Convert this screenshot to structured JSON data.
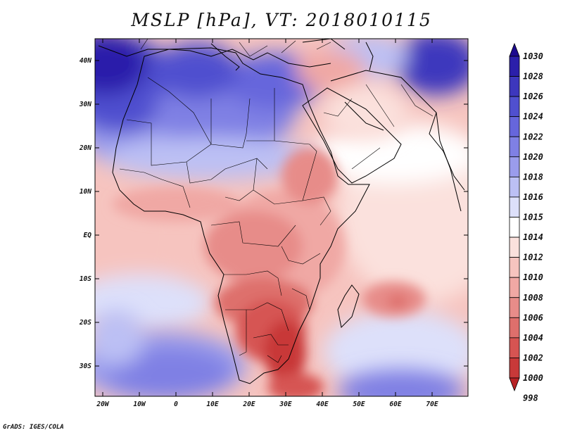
{
  "title": "MSLP [hPa], VT: 2018010115",
  "credit": "GrADS: IGES/COLA",
  "axes": {
    "x_ticks": [
      "20W",
      "10W",
      "0",
      "10E",
      "20E",
      "30E",
      "40E",
      "50E",
      "60E",
      "70E"
    ],
    "y_ticks": [
      "40N",
      "30N",
      "20N",
      "10N",
      "EQ",
      "10S",
      "20S",
      "30S"
    ]
  },
  "colorbar": {
    "levels": [
      "1030",
      "1028",
      "1026",
      "1024",
      "1022",
      "1020",
      "1018",
      "1016",
      "1015",
      "1014",
      "1012",
      "1010",
      "1008",
      "1006",
      "1004",
      "1002",
      "1000",
      "998"
    ],
    "colors": [
      "#1c0a8f",
      "#2b1faa",
      "#3d37bd",
      "#5050cf",
      "#6666dc",
      "#7f80e4",
      "#9a9cec",
      "#bcc0f4",
      "#dde0fa",
      "#ffffff",
      "#fbe1dd",
      "#f6c4bf",
      "#f0a8a4",
      "#e78c89",
      "#de6f6c",
      "#d65452",
      "#c83939",
      "#b82225"
    ]
  },
  "map_colors": {
    "ocean_default": "#f6c4bf",
    "coast": "#000000"
  }
}
